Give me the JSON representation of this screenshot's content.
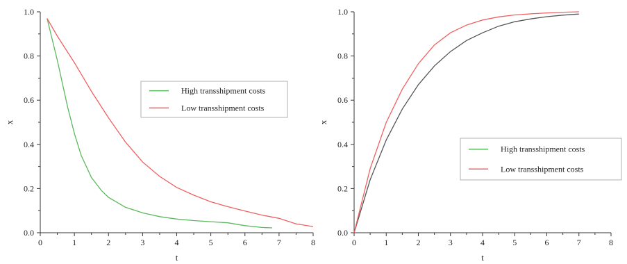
{
  "colors": {
    "green": "#5cb85c",
    "red": "#f06060",
    "gray": "#555555",
    "axis": "#333333"
  },
  "chart_data": [
    {
      "type": "line",
      "xlabel": "t",
      "ylabel": "x",
      "xlim": [
        0,
        8
      ],
      "ylim": [
        0,
        1.0
      ],
      "xticks": [
        "0",
        "1",
        "2",
        "3",
        "4",
        "5",
        "6",
        "7",
        "8"
      ],
      "yticks": [
        "0.0",
        "0.2",
        "0.4",
        "0.6",
        "0.8",
        "1.0"
      ],
      "grid": false,
      "legend_position": "center-right",
      "series": [
        {
          "name": "High transshipment costs",
          "color": "#5cb85c",
          "x": [
            0.2,
            0.5,
            0.8,
            1.0,
            1.2,
            1.5,
            1.8,
            2.0,
            2.5,
            3.0,
            3.5,
            4.0,
            4.5,
            5.0,
            5.5,
            6.0,
            6.5,
            6.8
          ],
          "y": [
            0.97,
            0.78,
            0.57,
            0.45,
            0.35,
            0.25,
            0.19,
            0.16,
            0.115,
            0.09,
            0.073,
            0.062,
            0.055,
            0.05,
            0.045,
            0.032,
            0.024,
            0.022
          ]
        },
        {
          "name": "Low transshipment costs",
          "color": "#f06060",
          "x": [
            0.2,
            0.5,
            1.0,
            1.5,
            2.0,
            2.5,
            3.0,
            3.5,
            4.0,
            4.5,
            5.0,
            5.5,
            6.0,
            6.5,
            7.0,
            7.5,
            8.0
          ],
          "y": [
            0.97,
            0.89,
            0.77,
            0.64,
            0.52,
            0.41,
            0.32,
            0.255,
            0.205,
            0.17,
            0.14,
            0.118,
            0.098,
            0.08,
            0.065,
            0.04,
            0.028
          ]
        }
      ]
    },
    {
      "type": "line",
      "xlabel": "t",
      "ylabel": "x",
      "xlim": [
        0,
        8
      ],
      "ylim": [
        0,
        1.0
      ],
      "xticks": [
        "0",
        "1",
        "2",
        "3",
        "4",
        "5",
        "6",
        "7",
        "8"
      ],
      "yticks": [
        "0.0",
        "0.2",
        "0.4",
        "0.6",
        "0.8",
        "1.0"
      ],
      "grid": false,
      "legend_position": "center-right",
      "series": [
        {
          "name": "High transshipment costs",
          "legend_color": "#5cb85c",
          "color": "#555555",
          "x": [
            0,
            0.5,
            1.0,
            1.5,
            2.0,
            2.5,
            3.0,
            3.5,
            4.0,
            4.5,
            5.0,
            5.5,
            6.0,
            6.5,
            7.0
          ],
          "y": [
            0,
            0.24,
            0.42,
            0.56,
            0.67,
            0.755,
            0.82,
            0.87,
            0.905,
            0.935,
            0.955,
            0.968,
            0.978,
            0.985,
            0.99
          ]
        },
        {
          "name": "Low transshipment costs",
          "color": "#f06060",
          "x": [
            0,
            0.5,
            1.0,
            1.5,
            2.0,
            2.5,
            3.0,
            3.5,
            4.0,
            4.5,
            5.0,
            5.5,
            6.0,
            6.5,
            7.0
          ],
          "y": [
            0,
            0.29,
            0.5,
            0.65,
            0.765,
            0.85,
            0.905,
            0.94,
            0.963,
            0.977,
            0.986,
            0.991,
            0.995,
            0.998,
            1.0
          ]
        }
      ]
    }
  ]
}
